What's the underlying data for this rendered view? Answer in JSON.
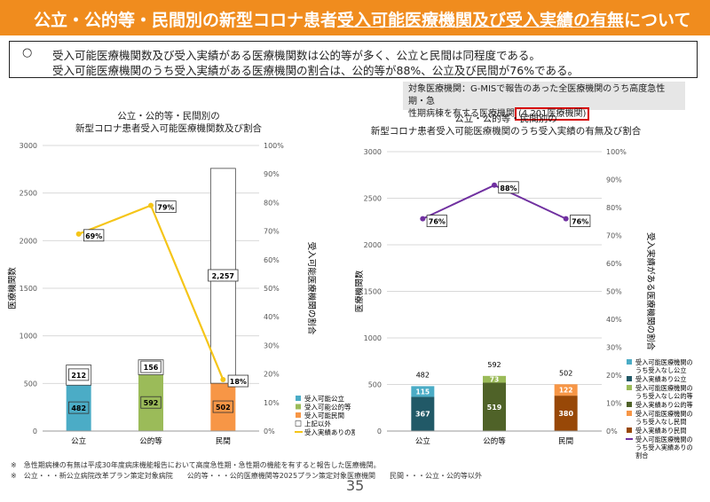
{
  "header": {
    "title_pre": "公立・公的等・民間別の新型コロナ患者",
    "title_underlined": "受入可能医療機関及び受入実績の有無",
    "title_post": "について"
  },
  "summary": {
    "mark": "○",
    "line1": "受入可能医療機関数及び受入実績がある医療機関数は公的等が多く、公立と民間は同程度である。",
    "line2": "受入可能医療機関のうち受入実績がある医療機関の割合は、公的等が88%、公立及び民間が76%である。"
  },
  "note": {
    "line1": "対象医療機関：G-MISで報告のあった全医療機関のうち高度急性期・急",
    "line2_pre": "性期病棟を有する医療機関",
    "line2_highlight": "(4,201医療機関)"
  },
  "colors": {
    "header_bg": "#f08c1e",
    "public_capable": "#4bacc6",
    "quasi_capable": "#9bbb59",
    "private_capable": "#f79646",
    "other": "#ffffff",
    "line_left": "#f5c518",
    "line_right": "#7030a0",
    "public_accepted": "#215967",
    "quasi_accepted": "#4f6228",
    "private_accepted": "#984807",
    "public_not": "#4bacc6",
    "quasi_not": "#9bbb59",
    "private_not": "#f79646"
  },
  "chart_data": [
    {
      "type": "bar",
      "title": "公立・公的等・民間別の\n新型コロナ患者受入可能医療機関数及び割合",
      "categories": [
        "公立",
        "公的等",
        "民間"
      ],
      "ylabel": "医療機関数",
      "y2label": "受入可能医療機関の割合",
      "ylim": [
        0,
        3000
      ],
      "yticks": [
        "0",
        "500",
        "1000",
        "1500",
        "2000",
        "2500",
        "3000"
      ],
      "y2lim": [
        0,
        100
      ],
      "y2ticks": [
        "0%",
        "10%",
        "20%",
        "30%",
        "40%",
        "50%",
        "60%",
        "70%",
        "80%",
        "90%",
        "100%"
      ],
      "series": [
        {
          "name": "受入可能公立",
          "values": [
            482,
            0,
            0
          ]
        },
        {
          "name": "受入可能公的等",
          "values": [
            0,
            592,
            0
          ]
        },
        {
          "name": "受入可能民間",
          "values": [
            0,
            0,
            502
          ]
        },
        {
          "name": "上記以外",
          "values": [
            212,
            156,
            2257
          ]
        }
      ],
      "bar_labels_bottom": [
        "482",
        "592",
        "502"
      ],
      "bar_labels_top": [
        "212",
        "156",
        "2,257"
      ],
      "line": {
        "name": "受入実績ありの割合",
        "values": [
          69,
          79,
          18
        ],
        "labels": [
          "69%",
          "79%",
          "18%"
        ]
      },
      "legend": [
        {
          "label": "受入可能公立"
        },
        {
          "label": "受入可能公的等"
        },
        {
          "label": "受入可能民間"
        },
        {
          "label": "上記以外"
        },
        {
          "label": "受入実績ありの割合"
        }
      ]
    },
    {
      "type": "bar",
      "title": "公立・公的等・民間別の\n新型コロナ患者受入可能医療機関のうち受入実績の有無及び割合",
      "categories": [
        "公立",
        "公的等",
        "民間"
      ],
      "ylabel": "医療機関数",
      "y2label": "受入実績がある医療機関の割合",
      "ylim": [
        0,
        3000
      ],
      "yticks": [
        "0",
        "500",
        "1000",
        "1500",
        "2000",
        "2500",
        "3000"
      ],
      "y2lim": [
        0,
        100
      ],
      "y2ticks": [
        "0%",
        "10%",
        "20%",
        "30%",
        "40%",
        "50%",
        "60%",
        "70%",
        "80%",
        "90%",
        "100%"
      ],
      "series": [
        {
          "name": "受入実績あり",
          "values": [
            367,
            519,
            380
          ]
        },
        {
          "name": "受入実績なし",
          "values": [
            115,
            73,
            122
          ]
        }
      ],
      "bar_labels_bottom": [
        "367",
        "519",
        "380"
      ],
      "bar_labels_mid": [
        "115",
        "73",
        "122"
      ],
      "bar_totals": [
        "482",
        "592",
        "502"
      ],
      "line": {
        "name": "受入実績ありの割合",
        "values": [
          76,
          88,
          76
        ],
        "labels": [
          "76%",
          "88%",
          "76%"
        ]
      },
      "legend": [
        {
          "label": "受入可能医療機関の\nうち受入なし公立"
        },
        {
          "label": "受入実績あり公立"
        },
        {
          "label": "受入可能医療機関の\nうち受入なし公的等"
        },
        {
          "label": "受入実績あり公的等"
        },
        {
          "label": "受入可能医療機関の\nうち受入なし民間"
        },
        {
          "label": "受入実績あり民間"
        },
        {
          "label": "受入可能医療機関の\nうち受入実績ありの\n割合"
        }
      ]
    }
  ],
  "footnotes": {
    "line1": "※　急性期病棟の有無は平成30年度病床機能報告において高度急性期・急性期の機能を有すると報告した医療機関。",
    "line2": "※　公立・・・新公立病院改革プラン策定対象病院　　公的等・・・公的医療機関等2025プラン策定対象医療機関　　民間・・・公立・公的等以外"
  },
  "page_number": "35"
}
